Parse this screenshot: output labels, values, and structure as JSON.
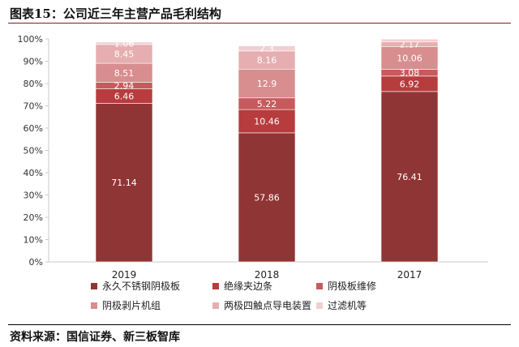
{
  "title": "图表15：公司近三年主营产品毛利结构",
  "source": "资料来源：国信证券、新三板智库",
  "colors": [
    "#903535",
    "#b73c3e",
    "#c75a5c",
    "#d88d8f",
    "#e6aeb0",
    "#f0cfd0"
  ],
  "chart_data": {
    "type": "bar",
    "stacked": true,
    "categories": [
      "2019",
      "2018",
      "2017"
    ],
    "series": [
      {
        "name": "永久不锈钢阴极板",
        "values": [
          71.14,
          57.86,
          76.41
        ]
      },
      {
        "name": "绝缘夹边条",
        "values": [
          6.46,
          10.46,
          6.92
        ]
      },
      {
        "name": "阴极板维修",
        "values": [
          2.94,
          5.22,
          3.08
        ]
      },
      {
        "name": "阴极剥片机组",
        "values": [
          8.51,
          12.9,
          10.06
        ]
      },
      {
        "name": "两极四触点导电装置",
        "values": [
          8.45,
          8.16,
          2.17
        ]
      },
      {
        "name": "过滤机等",
        "values": [
          1.06,
          2.3,
          1.3
        ]
      }
    ],
    "data_labels": [
      [
        "71.14",
        "57.86",
        "76.41"
      ],
      [
        "6.46",
        "10.46",
        "6.92"
      ],
      [
        "2.94",
        "5.22",
        "3.08"
      ],
      [
        "8.51",
        "12.9",
        "10.06"
      ],
      [
        "8.45",
        "8.16",
        "2.17"
      ],
      [
        "1.06",
        "2.3",
        ""
      ]
    ],
    "yticks": [
      "0%",
      "10%",
      "20%",
      "30%",
      "40%",
      "50%",
      "60%",
      "70%",
      "80%",
      "90%",
      "100%"
    ],
    "ylim": [
      0,
      100
    ],
    "legend_position": "bottom",
    "grid": false
  }
}
